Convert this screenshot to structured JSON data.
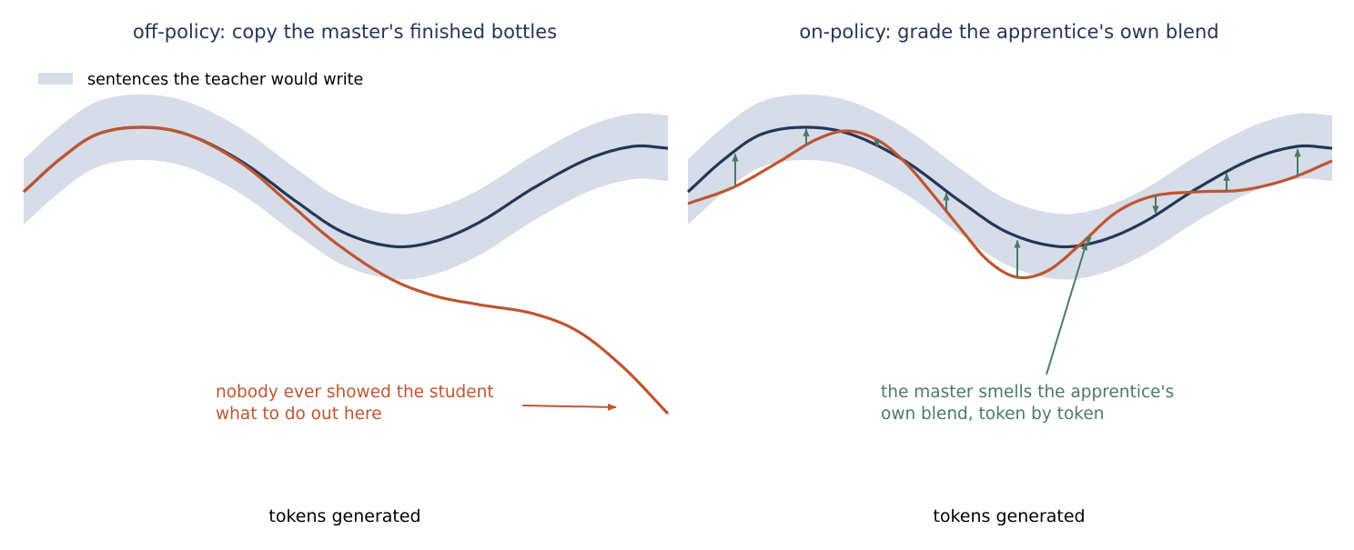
{
  "colors": {
    "band": "#d6dce8",
    "teacher": "#223858",
    "student": "#c05530",
    "feedback": "#4a7a6a",
    "title": "#243757"
  },
  "legend": {
    "band_label": "sentences the teacher would write"
  },
  "panels": [
    {
      "title": "off-policy: copy the master's finished bottles",
      "xlabel": "tokens generated",
      "annotation": [
        "nobody ever showed the student",
        "what to do out here"
      ]
    },
    {
      "title": "on-policy: grade the apprentice's own blend",
      "xlabel": "tokens generated",
      "annotation": [
        "the master smells the apprentice's",
        "own blend, token by token"
      ]
    }
  ]
}
